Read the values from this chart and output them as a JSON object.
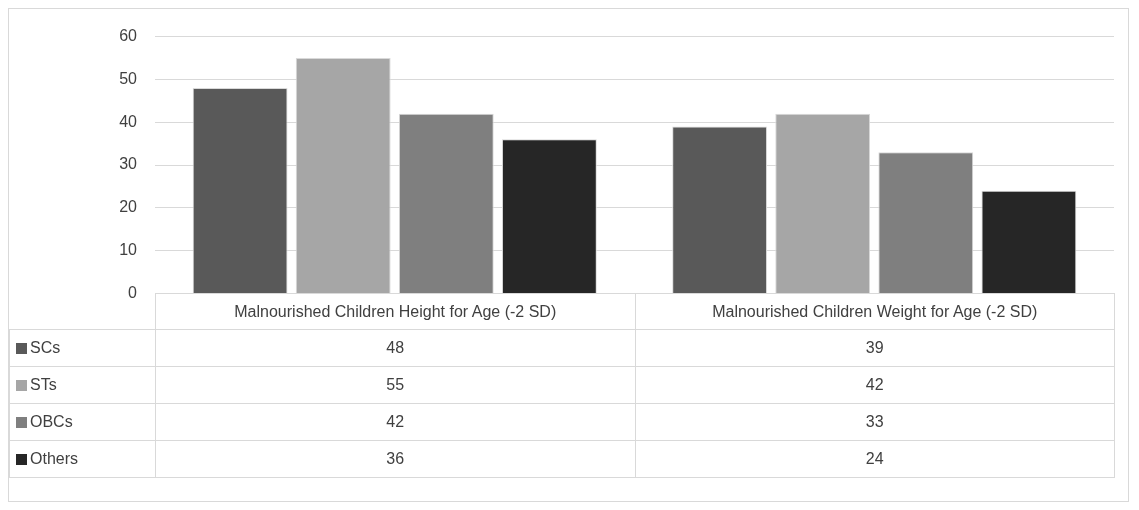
{
  "chart_data": {
    "type": "bar",
    "categories": [
      "Malnourished Children Height for Age (-2 SD)",
      "Malnourished Children Weight for Age (-2 SD)"
    ],
    "series": [
      {
        "name": "SCs",
        "color": "#595959",
        "values": [
          48,
          39
        ]
      },
      {
        "name": "STs",
        "color": "#a6a6a6",
        "values": [
          55,
          42
        ]
      },
      {
        "name": "OBCs",
        "color": "#7f7f7f",
        "values": [
          42,
          33
        ]
      },
      {
        "name": "Others",
        "color": "#262626",
        "values": [
          36,
          24
        ]
      }
    ],
    "ylim": [
      0,
      60
    ],
    "yticks": [
      0,
      10,
      20,
      30,
      40,
      50,
      60
    ],
    "grid": "y",
    "legend": "bottom left",
    "data_labels": true
  }
}
